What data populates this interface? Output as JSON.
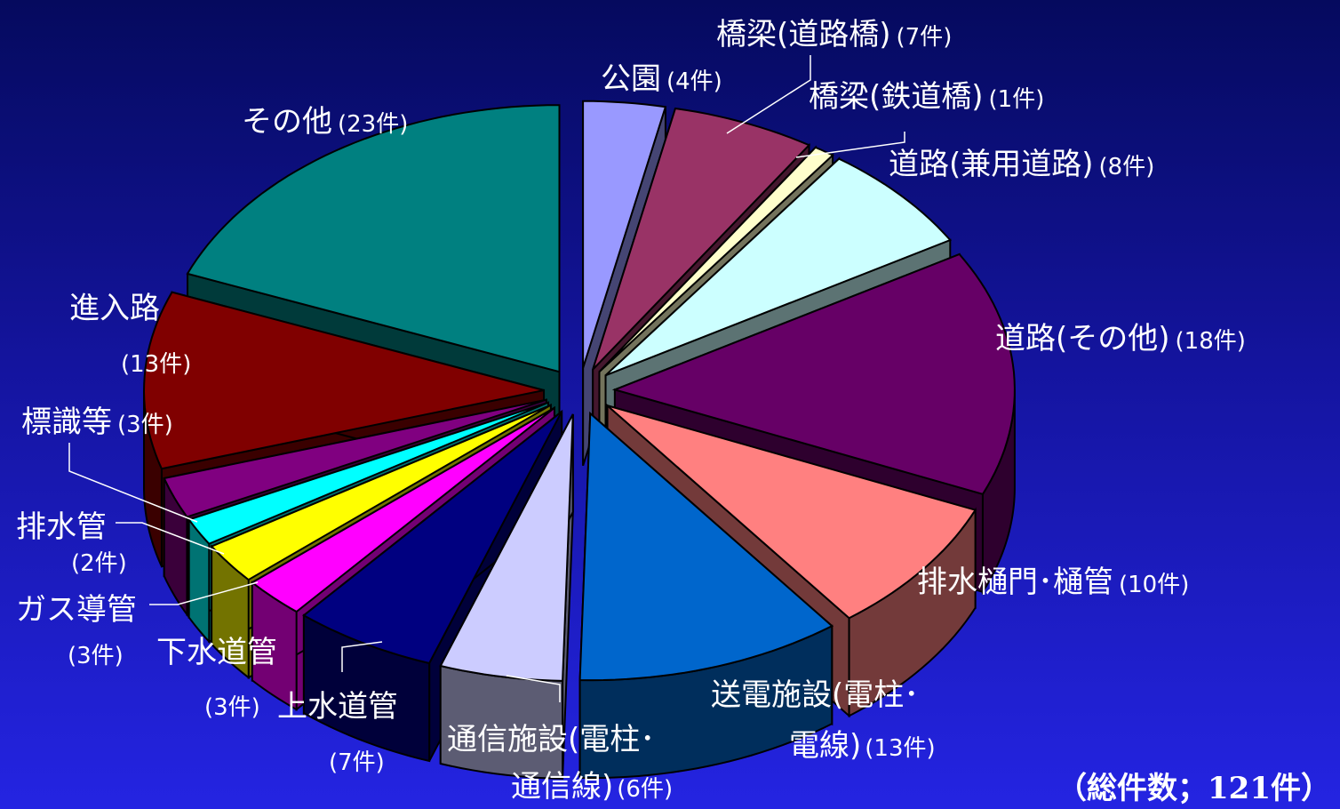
{
  "chart_data": {
    "type": "pie",
    "style": "3d-exploded",
    "total_label": "（総件数；121件）",
    "slices": [
      {
        "label": "公園",
        "count_text": "(4件)",
        "value": 4,
        "color": "#9999ff"
      },
      {
        "label": "橋梁(道路橋)",
        "count_text": "(7件)",
        "value": 7,
        "color": "#993366"
      },
      {
        "label": "橋梁(鉄道橋)",
        "count_text": "(1件)",
        "value": 1,
        "color": "#ffffcc"
      },
      {
        "label": "道路(兼用道路)",
        "count_text": "(8件)",
        "value": 8,
        "color": "#ccffff"
      },
      {
        "label": "道路(その他)",
        "count_text": "(18件)",
        "value": 18,
        "color": "#660066"
      },
      {
        "label": "排水樋門･樋管",
        "count_text": "(10件)",
        "value": 10,
        "color": "#ff8080"
      },
      {
        "label": "送電施設(電柱･",
        "label2": "電線)",
        "count_text": "(13件)",
        "value": 13,
        "color": "#0066cc"
      },
      {
        "label": "通信施設(電柱･",
        "label2": "通信線)",
        "count_text": "(6件)",
        "value": 6,
        "color": "#ccccff"
      },
      {
        "label": "上水道管",
        "count_text": "(7件)",
        "value": 7,
        "color": "#000080"
      },
      {
        "label": "下水道管",
        "count_text": "(3件)",
        "value": 3,
        "color": "#ff00ff"
      },
      {
        "label": "ガス導管",
        "count_text": "(3件)",
        "value": 3,
        "color": "#ffff00"
      },
      {
        "label": "排水管",
        "count_text": "(2件)",
        "value": 2,
        "color": "#00ffff"
      },
      {
        "label": "標識等",
        "count_text": "(3件)",
        "value": 3,
        "color": "#800080"
      },
      {
        "label": "進入路",
        "count_text": "(13件)",
        "value": 13,
        "color": "#800000"
      },
      {
        "label": "その他",
        "count_text": "(23件)",
        "value": 23,
        "color": "#008080"
      }
    ]
  }
}
